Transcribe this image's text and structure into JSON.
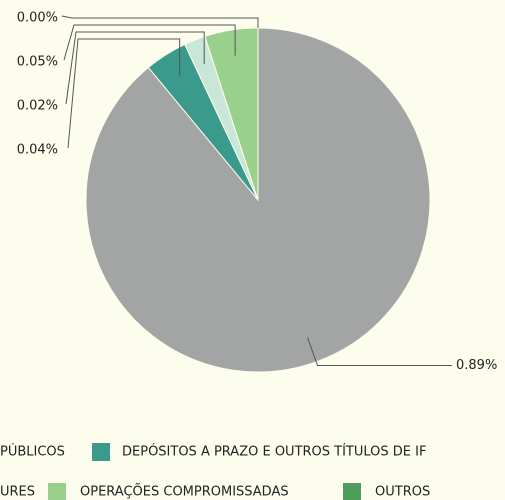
{
  "chart_data": {
    "type": "pie",
    "categories": [
      "PÚBLICOS",
      "DEPÓSITOS A PRAZO E OUTROS TÍTULOS DE IF",
      "URES",
      "OPERAÇÕES COMPROMISSADAS",
      "OUTROS"
    ],
    "values": [
      0.89,
      0.04,
      0.02,
      0.05,
      0.0
    ],
    "value_labels": [
      "0.89%",
      "0.04%",
      "0.02%",
      "0.05%",
      "0.00%"
    ],
    "colors": [
      "#a3a5a5",
      "#3a9a8b",
      "#c9e7d9",
      "#99d18c",
      "#4e9e5c"
    ]
  }
}
